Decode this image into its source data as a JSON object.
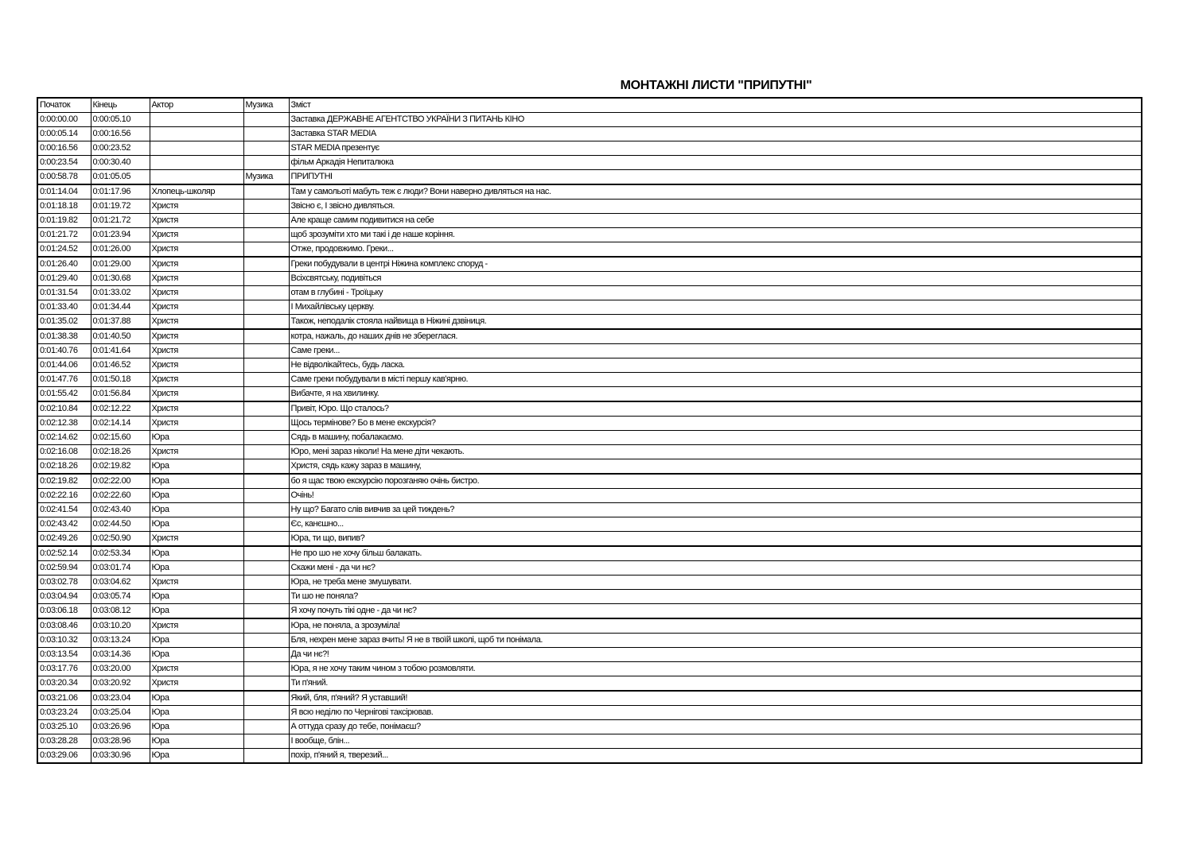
{
  "title": "МОНТАЖНІ ЛИСТИ \"ПРИПУТНІ\"",
  "columns": [
    "Початок",
    "Кінець",
    "Актор",
    "Музика",
    "Зміст"
  ],
  "rows": [
    [
      "0:00:00.00",
      "0:00:05.10",
      "",
      "",
      "Заставка ДЕРЖАВНЕ АГЕНТСТВО УКРАЇНИ З ПИТАНЬ КІНО"
    ],
    [
      "0:00:05.14",
      "0:00:16.56",
      "",
      "",
      "Заставка STAR MEDIA"
    ],
    [
      "0:00:16.56",
      "0:00:23.52",
      "",
      "",
      "STAR MEDIA презентує"
    ],
    [
      "0:00:23.54",
      "0:00:30.40",
      "",
      "",
      "фільм Аркадія Непиталюка"
    ],
    [
      "0:00:58.78",
      "0:01:05.05",
      "",
      "Музика",
      "ПРИПУТНІ"
    ],
    [
      "0:01:14.04",
      "0:01:17.96",
      "Хлопець-школяр",
      "",
      "Там у самольоті мабуть теж є люди? Вони наверно дивляться на нас."
    ],
    [
      "0:01:18.18",
      "0:01:19.72",
      "Христя",
      "",
      "Звісно є,  І звісно дивляться."
    ],
    [
      "0:01:19.82",
      "0:01:21.72",
      "Христя",
      "",
      "Але краще самим подивитися на себе"
    ],
    [
      "0:01:21.72",
      "0:01:23.94",
      "Христя",
      "",
      "щоб зрозуміти хто ми такі і де наше коріння."
    ],
    [
      "0:01:24.52",
      "0:01:26.00",
      "Христя",
      "",
      "Отже,  продовжимо. Греки..."
    ],
    [
      "0:01:26.40",
      "0:01:29.00",
      "Христя",
      "",
      "Греки побудували в центрі Ніжина комплекс споруд -"
    ],
    [
      "0:01:29.40",
      "0:01:30.68",
      "Христя",
      "",
      "Всіхсвятську,  подивіться"
    ],
    [
      "0:01:31.54",
      "0:01:33.02",
      "Христя",
      "",
      "отам в глубині - Троїцьку"
    ],
    [
      "0:01:33.40",
      "0:01:34.44",
      "Христя",
      "",
      "І Михайлівську церкву."
    ],
    [
      "0:01:35.02",
      "0:01:37.88",
      "Христя",
      "",
      "Також,  неподалік стояла найвища в Ніжині дзвіниця."
    ],
    [
      "0:01:38.38",
      "0:01:40.50",
      "Христя",
      "",
      "котра,  нажаль,  до наших днів не збереглася."
    ],
    [
      "0:01:40.76",
      "0:01:41.64",
      "Христя",
      "",
      "Саме греки..."
    ],
    [
      "0:01:44.06",
      "0:01:46.52",
      "Христя",
      "",
      "Не відволікайтесь,  будь ласка."
    ],
    [
      "0:01:47.76",
      "0:01:50.18",
      "Христя",
      "",
      "Саме греки побудували в місті першу кав'ярню."
    ],
    [
      "0:01:55.42",
      "0:01:56.84",
      "Христя",
      "",
      "Вибачте,  я на хвилинку."
    ],
    [
      "0:02:10.84",
      "0:02:12.22",
      "Христя",
      "",
      "Привіт,  Юро. Що сталось?"
    ],
    [
      "0:02:12.38",
      "0:02:14.14",
      "Христя",
      "",
      "Щось термінове? Бо в мене екскурсія?"
    ],
    [
      "0:02:14.62",
      "0:02:15.60",
      "Юра",
      "",
      "Сядь в машину,  побалакаємо."
    ],
    [
      "0:02:16.08",
      "0:02:18.26",
      "Христя",
      "",
      "Юро,  мені зараз ніколи! На мене діти чекають."
    ],
    [
      "0:02:18.26",
      "0:02:19.82",
      "Юра",
      "",
      "Христя,  сядь кажу зараз в машину,"
    ],
    [
      "0:02:19.82",
      "0:02:22.00",
      "Юра",
      "",
      "бо я щас твою екскурсію порозганяю очінь бистро."
    ],
    [
      "0:02:22.16",
      "0:02:22.60",
      "Юра",
      "",
      "Очінь!"
    ],
    [
      "0:02:41.54",
      "0:02:43.40",
      "Юра",
      "",
      "Ну що? Багато слів вивчив за цей тиждень?"
    ],
    [
      "0:02:43.42",
      "0:02:44.50",
      "Юра",
      "",
      "Єс,  канєшно..."
    ],
    [
      "0:02:49.26",
      "0:02:50.90",
      "Христя",
      "",
      "Юра,  ти що,  випив?"
    ],
    [
      "0:02:52.14",
      "0:02:53.34",
      "Юра",
      "",
      "Не про шо не хочу більш балакать."
    ],
    [
      "0:02:59.94",
      "0:03:01.74",
      "Юра",
      "",
      "Скажи мені - да чи нє?"
    ],
    [
      "0:03:02.78",
      "0:03:04.62",
      "Христя",
      "",
      "Юра,  не треба мене змушувати."
    ],
    [
      "0:03:04.94",
      "0:03:05.74",
      "Юра",
      "",
      "Ти шо не поняла?"
    ],
    [
      "0:03:06.18",
      "0:03:08.12",
      "Юра",
      "",
      "Я хочу почуть тікі одне - да чи нє?"
    ],
    [
      "0:03:08.46",
      "0:03:10.20",
      "Христя",
      "",
      "Юра,  не поняла,  а зрозуміла!"
    ],
    [
      "0:03:10.32",
      "0:03:13.24",
      "Юра",
      "",
      "Бля,  нехрен мене зараз вчить! Я не в твоїй школі,  щоб ти понімала."
    ],
    [
      "0:03:13.54",
      "0:03:14.36",
      "Юра",
      "",
      "Да чи нє?!"
    ],
    [
      "0:03:17.76",
      "0:03:20.00",
      "Христя",
      "",
      "Юра,  я не хочу таким чином з тобою розмовляти."
    ],
    [
      "0:03:20.34",
      "0:03:20.92",
      "Христя",
      "",
      "Ти п'яний."
    ],
    [
      "0:03:21.06",
      "0:03:23.04",
      "Юра",
      "",
      "Який,  бля,  п'яний? Я уставший!"
    ],
    [
      "0:03:23.24",
      "0:03:25.04",
      "Юра",
      "",
      "Я всю неділю по Чернігові таксірював."
    ],
    [
      "0:03:25.10",
      "0:03:26.96",
      "Юра",
      "",
      "А оттуда сразу до тебе,  понімаєш?"
    ],
    [
      "0:03:28.28",
      "0:03:28.96",
      "Юра",
      "",
      "І вообще,  блін..."
    ],
    [
      "0:03:29.06",
      "0:03:30.96",
      "Юра",
      "",
      "похір,  п'яний я,  тверезий..."
    ]
  ]
}
